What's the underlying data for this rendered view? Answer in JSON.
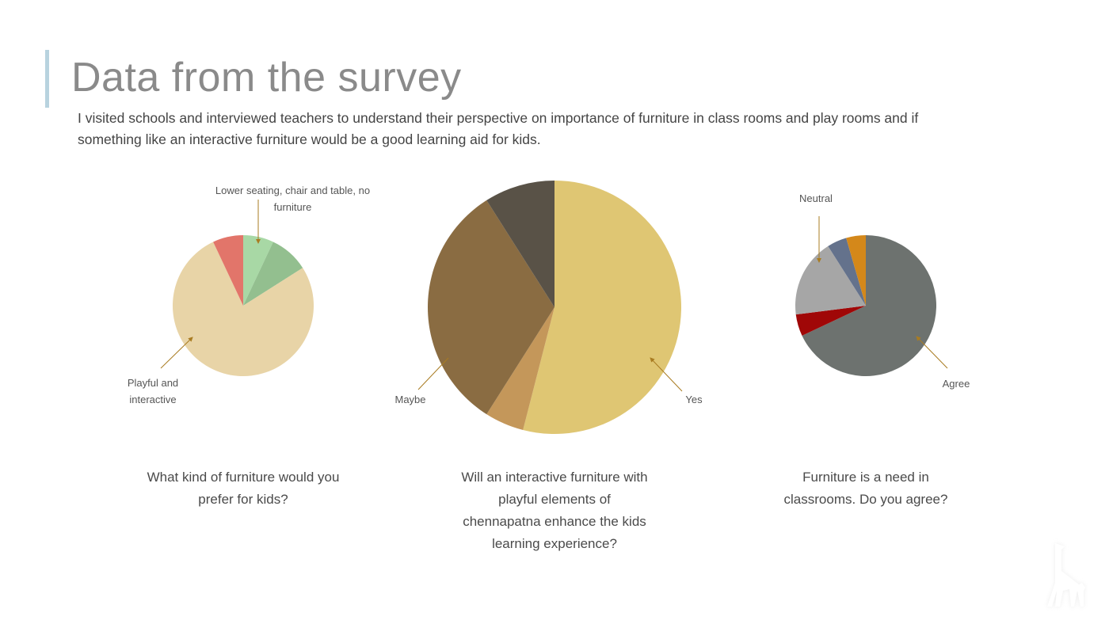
{
  "title": "Data from the survey",
  "intro": "I visited schools and interviewed teachers to understand their perspective on importance of furniture in class rooms and play rooms and if something like an interactive furniture would be a good learning aid for kids.",
  "logo": "giraffe-logo",
  "chart_data": [
    {
      "type": "pie",
      "title": "What kind of furniture would you prefer for kids?",
      "slices": [
        {
          "label": "Lower seating, chair and table, no furniture",
          "value": 7,
          "color": "#a8d8a5"
        },
        {
          "label": "",
          "value": 9,
          "color": "#93bf8f"
        },
        {
          "label": "Playful and interactive",
          "value": 77,
          "color": "#e8d4a7"
        },
        {
          "label": "",
          "value": 7,
          "color": "#e2756a"
        }
      ]
    },
    {
      "type": "pie",
      "title": "Will an interactive furniture with playful elements of chennapatna enhance the kids learning experience?",
      "slices": [
        {
          "label": "Yes",
          "value": 54,
          "color": "#dfc673"
        },
        {
          "label": "",
          "value": 5,
          "color": "#c4975a"
        },
        {
          "label": "Maybe",
          "value": 32,
          "color": "#8a6c42"
        },
        {
          "label": "",
          "value": 9,
          "color": "#595247"
        }
      ]
    },
    {
      "type": "pie",
      "title": "Furniture is a need in classrooms. Do you agree?",
      "slices": [
        {
          "label": "Agree",
          "value": 68,
          "color": "#6d726f"
        },
        {
          "label": "",
          "value": 5,
          "color": "#a00707"
        },
        {
          "label": "Neutral",
          "value": 18,
          "color": "#a6a6a6"
        },
        {
          "label": "",
          "value": 4.5,
          "color": "#64728c"
        },
        {
          "label": "",
          "value": 4.5,
          "color": "#d4881a"
        }
      ]
    }
  ]
}
